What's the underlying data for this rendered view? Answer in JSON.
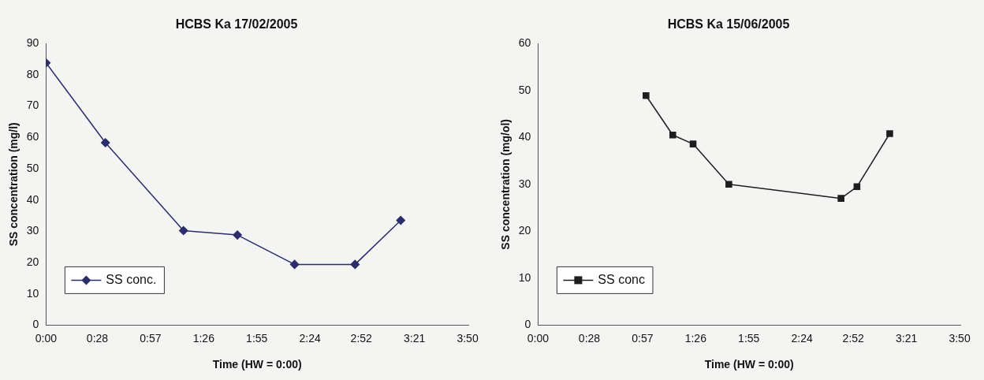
{
  "chart_data": [
    {
      "type": "line",
      "title": "HCBS Ka 17/02/2005",
      "xlabel": "Time (HW = 0:00)",
      "ylabel": "SS concentration (mg/l)",
      "x": [
        0,
        0.54,
        1.25,
        1.74,
        2.26,
        2.81,
        3.225
      ],
      "series": [
        {
          "name": "SS conc.",
          "color": "#2b2d6b",
          "values": [
            83.8,
            58.3,
            30.2,
            28.8,
            19.4,
            19.4,
            33.5
          ]
        }
      ],
      "xlim": [
        0,
        3.84
      ],
      "xticks": [
        {
          "value": 0,
          "label": "0:00"
        },
        {
          "value": 0.4667,
          "label": "0:28"
        },
        {
          "value": 0.95,
          "label": "0:57"
        },
        {
          "value": 1.4333,
          "label": "1:26"
        },
        {
          "value": 1.9167,
          "label": "1:55"
        },
        {
          "value": 2.4,
          "label": "2:24"
        },
        {
          "value": 2.8667,
          "label": "2:52"
        },
        {
          "value": 3.35,
          "label": "3:21"
        },
        {
          "value": 3.8333,
          "label": "3:50"
        }
      ],
      "ylim": [
        0,
        90
      ],
      "yticks": [
        0,
        10,
        20,
        30,
        40,
        50,
        60,
        70,
        80,
        90
      ],
      "grid": false,
      "legend": "bottom left",
      "marker": "diamond",
      "line_style": "solid"
    },
    {
      "type": "line",
      "title": "HCBS Ka 15/06/2005",
      "xlabel": "Time (HW = 0:00)",
      "ylabel": "SS concentration (mg/ol)",
      "x": [
        0.982,
        1.225,
        1.41,
        1.735,
        2.755,
        2.9,
        3.198
      ],
      "series": [
        {
          "name": "SS conc",
          "color": "#1e1e1e",
          "values": [
            48.9,
            40.5,
            38.6,
            30.0,
            27.0,
            29.5,
            40.8
          ]
        }
      ],
      "xlim": [
        0,
        3.84
      ],
      "xticks": [
        {
          "value": 0,
          "label": "0:00"
        },
        {
          "value": 0.4667,
          "label": "0:28"
        },
        {
          "value": 0.95,
          "label": "0:57"
        },
        {
          "value": 1.4333,
          "label": "1:26"
        },
        {
          "value": 1.9167,
          "label": "1:55"
        },
        {
          "value": 2.4,
          "label": "2:24"
        },
        {
          "value": 2.8667,
          "label": "2:52"
        },
        {
          "value": 3.35,
          "label": "3:21"
        },
        {
          "value": 3.8333,
          "label": "3:50"
        }
      ],
      "ylim": [
        0,
        60
      ],
      "yticks": [
        0,
        10,
        20,
        30,
        40,
        50,
        60
      ],
      "grid": false,
      "legend": "bottom left",
      "marker": "square",
      "line_style": "solid"
    }
  ]
}
